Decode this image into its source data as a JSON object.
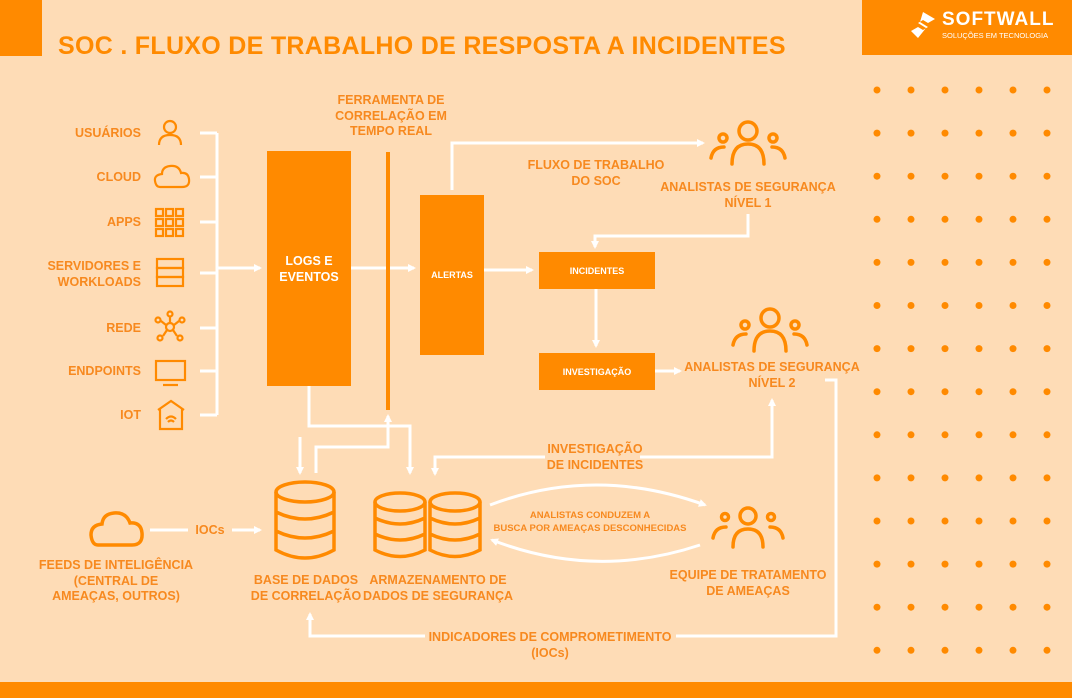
{
  "title": "SOC . FLUXO DE TRABALHO DE RESPOSTA A INCIDENTES",
  "logo": {
    "name": "SOFTWALL",
    "tagline": "SOLUÇÕES EM TECNOLOGIA"
  },
  "sources": [
    {
      "label": "USUÁRIOS",
      "icon": "user-icon"
    },
    {
      "label": "CLOUD",
      "icon": "cloud-icon"
    },
    {
      "label": "APPS",
      "icon": "apps-grid-icon"
    },
    {
      "label_line1": "SERVIDORES E",
      "label_line2": "WORKLOADS",
      "icon": "server-icon"
    },
    {
      "label": "REDE",
      "icon": "network-icon"
    },
    {
      "label": "ENDPOINTS",
      "icon": "monitor-icon"
    },
    {
      "label": "IOT",
      "icon": "smart-home-icon"
    }
  ],
  "nodes": {
    "logs_line1": "LOGS E",
    "logs_line2": "EVENTOS",
    "correlation_tool": [
      "FERRAMENTA DE",
      "CORRELAÇÃO EM",
      "TEMPO REAL"
    ],
    "alerts": "ALERTAS",
    "incidents": "INCIDENTES",
    "investigation": "INVESTIGAÇÃO",
    "soc_workflow": [
      "FLUXO DE TRABALHO",
      "DO SOC"
    ],
    "analysts_l1": [
      "ANALISTAS DE SEGURANÇA",
      "NÍVEL 1"
    ],
    "analysts_l2": [
      "ANALISTAS DE SEGURANÇA",
      "NÍVEL 2"
    ],
    "incident_investigation": [
      "INVESTIGAÇÃO",
      "DE INCIDENTES"
    ],
    "hunt": [
      "ANALISTAS CONDUZEM A",
      "BUSCA POR AMEAÇAS DESCONHECIDAS"
    ],
    "threat_team": [
      "EQUIPE DE TRATAMENTO",
      "DE AMEAÇAS"
    ],
    "feeds": [
      "FEEDS DE INTELIGÊNCIA",
      "(CENTRAL DE",
      "AMEAÇAS, OUTROS)"
    ],
    "iocs_short": "IOCs",
    "correlation_db": [
      "BASE DE DADOS",
      "DE CORRELAÇÃO"
    ],
    "security_storage": [
      "ARMAZENAMENTO DE",
      "DADOS DE SEGURANÇA"
    ],
    "indicators": [
      "INDICADORES DE COMPROMETIMENTO",
      "(IOCs)"
    ]
  },
  "colors": {
    "background": "#FEDCB6",
    "accent": "#FF8A00",
    "text": "#F7891F",
    "connector": "#FFFFFF"
  }
}
